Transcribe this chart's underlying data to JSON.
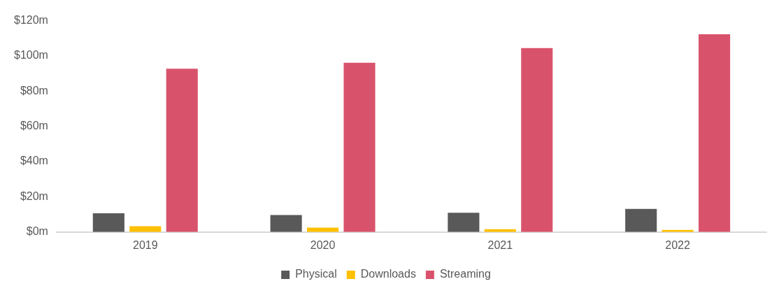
{
  "chart_data": {
    "type": "bar",
    "categories": [
      "2019",
      "2020",
      "2021",
      "2022"
    ],
    "series": [
      {
        "name": "Physical",
        "color": "#595959",
        "values": [
          10.6,
          9.6,
          10.9,
          13.1
        ]
      },
      {
        "name": "Downloads",
        "color": "#ffc000",
        "values": [
          3.3,
          2.5,
          1.6,
          1.2
        ]
      },
      {
        "name": "Streaming",
        "color": "#d9526b",
        "values": [
          92.7,
          96.1,
          104.5,
          112.3
        ]
      }
    ],
    "ylim": [
      0,
      120
    ],
    "yticks": [
      {
        "value": 0,
        "label": "$0m"
      },
      {
        "value": 20,
        "label": "$20m"
      },
      {
        "value": 40,
        "label": "$40m"
      },
      {
        "value": 60,
        "label": "$60m"
      },
      {
        "value": 80,
        "label": "$80m"
      },
      {
        "value": 100,
        "label": "$100m"
      },
      {
        "value": 120,
        "label": "$120m"
      }
    ],
    "grid": false,
    "legend": "bottom"
  }
}
